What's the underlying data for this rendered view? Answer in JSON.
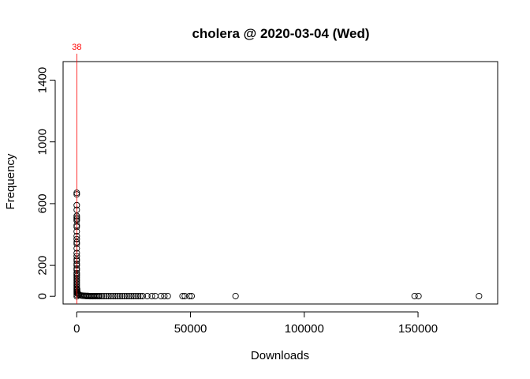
{
  "chart_data": {
    "type": "scatter",
    "title": "cholera @ 2020-03-04 (Wed)",
    "xlabel": "Downloads",
    "ylabel": "Frequency",
    "xlim": [
      -6000,
      185000
    ],
    "ylim": [
      -50,
      1520
    ],
    "x_ticks": [
      0,
      50000,
      100000,
      150000
    ],
    "x_tick_labels": [
      "0",
      "50000",
      "100000",
      "150000"
    ],
    "y_ticks": [
      0,
      200,
      600,
      1000,
      1400
    ],
    "y_tick_labels": [
      "0",
      "200",
      "600",
      "1000",
      "1400"
    ],
    "grid": false,
    "marker": "open-circle",
    "colors": {
      "points": "#000000",
      "marker_line": "#ff0000",
      "axes": "#000000"
    },
    "reference_line": {
      "x": 38,
      "label": "38",
      "color": "#ff0000"
    },
    "points": [
      {
        "x": 0,
        "y": 670
      },
      {
        "x": 0,
        "y": 660
      },
      {
        "x": 0,
        "y": 590
      },
      {
        "x": 0,
        "y": 560
      },
      {
        "x": 0,
        "y": 520
      },
      {
        "x": 0,
        "y": 510
      },
      {
        "x": 0,
        "y": 500
      },
      {
        "x": 0,
        "y": 490
      },
      {
        "x": 0,
        "y": 460
      },
      {
        "x": 0,
        "y": 450
      },
      {
        "x": 0,
        "y": 420
      },
      {
        "x": 0,
        "y": 390
      },
      {
        "x": 0,
        "y": 370
      },
      {
        "x": 0,
        "y": 350
      },
      {
        "x": 0,
        "y": 340
      },
      {
        "x": 0,
        "y": 310
      },
      {
        "x": 0,
        "y": 280
      },
      {
        "x": 0,
        "y": 260
      },
      {
        "x": 0,
        "y": 240
      },
      {
        "x": 0,
        "y": 230
      },
      {
        "x": 0,
        "y": 210
      },
      {
        "x": 0,
        "y": 200
      },
      {
        "x": 0,
        "y": 180
      },
      {
        "x": 0,
        "y": 170
      },
      {
        "x": 0,
        "y": 150
      },
      {
        "x": 0,
        "y": 140
      },
      {
        "x": 0,
        "y": 130
      },
      {
        "x": 0,
        "y": 120
      },
      {
        "x": 0,
        "y": 110
      },
      {
        "x": 0,
        "y": 100
      },
      {
        "x": 0,
        "y": 90
      },
      {
        "x": 0,
        "y": 80
      },
      {
        "x": 0,
        "y": 70
      },
      {
        "x": 0,
        "y": 60
      },
      {
        "x": 0,
        "y": 50
      },
      {
        "x": 0,
        "y": 40
      },
      {
        "x": 0,
        "y": 30
      },
      {
        "x": 0,
        "y": 20
      },
      {
        "x": 0,
        "y": 10
      },
      {
        "x": 0,
        "y": 0
      },
      {
        "x": 150,
        "y": 45
      },
      {
        "x": 250,
        "y": 30
      },
      {
        "x": 400,
        "y": 22
      },
      {
        "x": 600,
        "y": 15
      },
      {
        "x": 800,
        "y": 12
      },
      {
        "x": 1000,
        "y": 8
      },
      {
        "x": 1500,
        "y": 6
      },
      {
        "x": 2000,
        "y": 5
      },
      {
        "x": 2500,
        "y": 4
      },
      {
        "x": 3000,
        "y": 3
      },
      {
        "x": 3500,
        "y": 3
      },
      {
        "x": 4000,
        "y": 2
      },
      {
        "x": 4500,
        "y": 2
      },
      {
        "x": 5000,
        "y": 2
      },
      {
        "x": 5500,
        "y": 1
      },
      {
        "x": 6000,
        "y": 1
      },
      {
        "x": 6500,
        "y": 1
      },
      {
        "x": 7000,
        "y": 1
      },
      {
        "x": 7500,
        "y": 1
      },
      {
        "x": 8000,
        "y": 1
      },
      {
        "x": 8500,
        "y": 1
      },
      {
        "x": 9000,
        "y": 1
      },
      {
        "x": 9500,
        "y": 1
      },
      {
        "x": 10000,
        "y": 1
      },
      {
        "x": 11000,
        "y": 1
      },
      {
        "x": 12000,
        "y": 1
      },
      {
        "x": 13000,
        "y": 1
      },
      {
        "x": 14000,
        "y": 1
      },
      {
        "x": 15000,
        "y": 1
      },
      {
        "x": 16000,
        "y": 1
      },
      {
        "x": 17000,
        "y": 1
      },
      {
        "x": 18000,
        "y": 1
      },
      {
        "x": 19000,
        "y": 1
      },
      {
        "x": 20000,
        "y": 1
      },
      {
        "x": 21000,
        "y": 1
      },
      {
        "x": 22000,
        "y": 1
      },
      {
        "x": 23000,
        "y": 1
      },
      {
        "x": 24000,
        "y": 1
      },
      {
        "x": 25000,
        "y": 1
      },
      {
        "x": 26000,
        "y": 1
      },
      {
        "x": 27000,
        "y": 1
      },
      {
        "x": 28000,
        "y": 1
      },
      {
        "x": 29000,
        "y": 1
      },
      {
        "x": 31000,
        "y": 1
      },
      {
        "x": 33000,
        "y": 1
      },
      {
        "x": 34500,
        "y": 1
      },
      {
        "x": 37000,
        "y": 1
      },
      {
        "x": 38500,
        "y": 1
      },
      {
        "x": 40000,
        "y": 1
      },
      {
        "x": 46500,
        "y": 1
      },
      {
        "x": 47500,
        "y": 1
      },
      {
        "x": 49500,
        "y": 1
      },
      {
        "x": 50500,
        "y": 1
      },
      {
        "x": 69800,
        "y": 1
      },
      {
        "x": 148500,
        "y": 1
      },
      {
        "x": 150200,
        "y": 1
      },
      {
        "x": 176800,
        "y": 1
      }
    ]
  }
}
